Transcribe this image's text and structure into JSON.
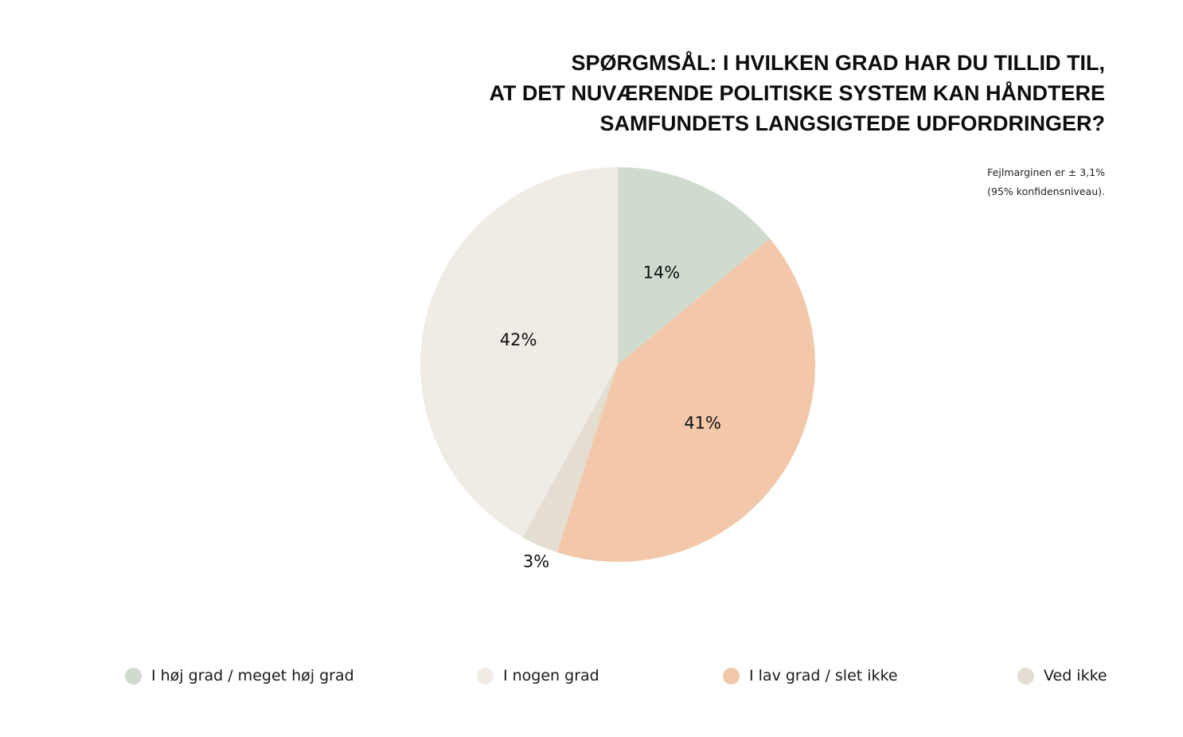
{
  "chart_data": {
    "type": "pie",
    "title": "SPØRGMSÅL: I HVILKEN GRAD HAR DU TILLID TIL, AT DET NUVÆRENDE POLITISKE SYSTEM KAN HÅNDTERE SAMFUNDETS LANGSIGTEDE UDFORDRINGER?",
    "title_lines": [
      "Spørgmsål: I hvilken grad har du tillid til,",
      "at det nuværende politiske system kan håndtere",
      "samfundets langsigtede udfordringer?"
    ],
    "note_lines": [
      "Fejlmarginen er ± 3,1%",
      "(95% konfidensniveau)."
    ],
    "slices": [
      {
        "name": "I høj grad / meget høj grad",
        "value": 14,
        "label": "14%",
        "color": "#cfdbce"
      },
      {
        "name": "I lav grad / slet ikke",
        "value": 41,
        "label": "41%",
        "color": "#f3c8aa"
      },
      {
        "name": "Ved ikke",
        "value": 3,
        "label": "3%",
        "color": "#e3ded1"
      },
      {
        "name": "I nogen grad",
        "value": 42,
        "label": "42%",
        "color": "#f0ebe5"
      }
    ],
    "start_angle_deg": 0,
    "direction": "clockwise",
    "legend_position": "bottom",
    "legend": [
      {
        "label": "I høj grad / meget høj grad",
        "color": "#cfdbce"
      },
      {
        "label": "I nogen grad",
        "color": "#f0ebe5"
      },
      {
        "label": "I lav grad / slet ikke",
        "color": "#f3c8aa"
      },
      {
        "label": "Ved ikke",
        "color": "#e3ded1"
      }
    ]
  }
}
